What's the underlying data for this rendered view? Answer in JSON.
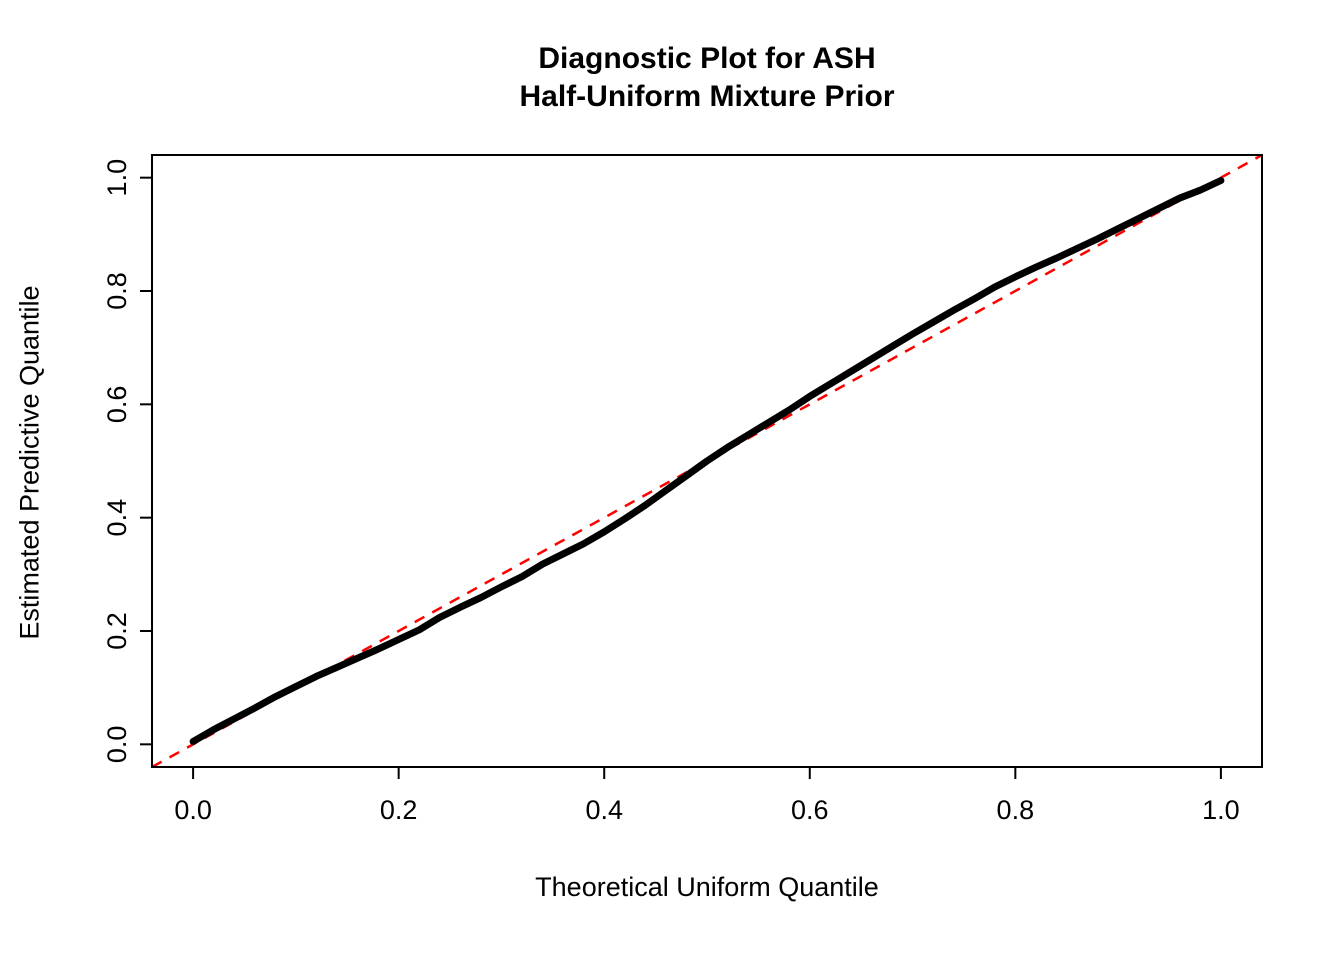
{
  "chart_data": {
    "type": "line",
    "title_line1": "Diagnostic Plot for ASH",
    "title_line2": "Half-Uniform Mixture Prior",
    "xlabel": "Theoretical Uniform Quantile",
    "ylabel": "Estimated Predictive Quantile",
    "x_ticks": [
      0.0,
      0.2,
      0.4,
      0.6,
      0.8,
      1.0
    ],
    "y_ticks": [
      0.0,
      0.2,
      0.4,
      0.6,
      0.8,
      1.0
    ],
    "x_tick_labels": [
      "0.0",
      "0.2",
      "0.4",
      "0.6",
      "0.8",
      "1.0"
    ],
    "y_tick_labels": [
      "0.0",
      "0.2",
      "0.4",
      "0.6",
      "0.8",
      "1.0"
    ],
    "axis_range": [
      -0.04,
      1.04
    ],
    "grid": false,
    "legend": "none",
    "colors": {
      "quantile_curve": "#000000",
      "reference_line": "#FF0000",
      "frame": "#000000"
    },
    "series": [
      {
        "name": "estimated-predictive-quantiles",
        "style": "solid-thick",
        "color": "#000000",
        "x": [
          0.0,
          0.02,
          0.04,
          0.06,
          0.08,
          0.1,
          0.12,
          0.14,
          0.16,
          0.18,
          0.2,
          0.22,
          0.24,
          0.26,
          0.28,
          0.3,
          0.32,
          0.34,
          0.36,
          0.38,
          0.4,
          0.42,
          0.44,
          0.46,
          0.48,
          0.5,
          0.52,
          0.54,
          0.56,
          0.58,
          0.6,
          0.62,
          0.64,
          0.66,
          0.68,
          0.7,
          0.72,
          0.74,
          0.76,
          0.78,
          0.8,
          0.82,
          0.84,
          0.86,
          0.88,
          0.9,
          0.92,
          0.94,
          0.96,
          0.98,
          1.0
        ],
        "y": [
          0.005,
          0.026,
          0.045,
          0.064,
          0.084,
          0.102,
          0.12,
          0.136,
          0.152,
          0.168,
          0.185,
          0.202,
          0.224,
          0.242,
          0.259,
          0.278,
          0.296,
          0.318,
          0.336,
          0.354,
          0.375,
          0.398,
          0.422,
          0.448,
          0.474,
          0.5,
          0.524,
          0.546,
          0.568,
          0.59,
          0.614,
          0.636,
          0.658,
          0.68,
          0.702,
          0.724,
          0.745,
          0.766,
          0.786,
          0.807,
          0.825,
          0.842,
          0.858,
          0.875,
          0.892,
          0.91,
          0.928,
          0.946,
          0.964,
          0.978,
          0.995
        ]
      },
      {
        "name": "identity-reference-line",
        "style": "dashed",
        "color": "#FF0000",
        "x": [
          -0.04,
          1.04
        ],
        "y": [
          -0.04,
          1.04
        ]
      }
    ]
  }
}
